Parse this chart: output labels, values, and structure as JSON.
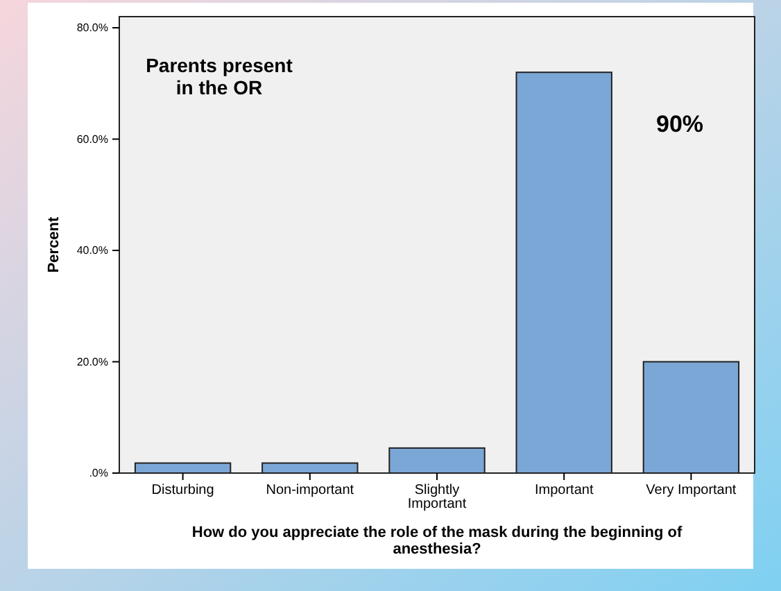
{
  "chart_data": {
    "type": "bar",
    "xlabel": "How do you appreciate the role of the mask during the beginning of anesthesia?",
    "ylabel": "Percent",
    "categories": [
      "Disturbing",
      "Non-important",
      "Slightly Important",
      "Important",
      "Very Important"
    ],
    "values": [
      1.8,
      1.8,
      4.5,
      72,
      20
    ],
    "color": "#7ba7d6",
    "ylim": [
      0,
      82
    ],
    "yticks": [
      {
        "value": 0,
        "label": ".0%"
      },
      {
        "value": 20,
        "label": "20.0%"
      },
      {
        "value": 40,
        "label": "40.0%"
      },
      {
        "value": 60,
        "label": "60.0%"
      },
      {
        "value": 80,
        "label": "80.0%"
      }
    ],
    "grid": false,
    "annotations": [
      "Parents present\nin the OR",
      "90%"
    ]
  }
}
